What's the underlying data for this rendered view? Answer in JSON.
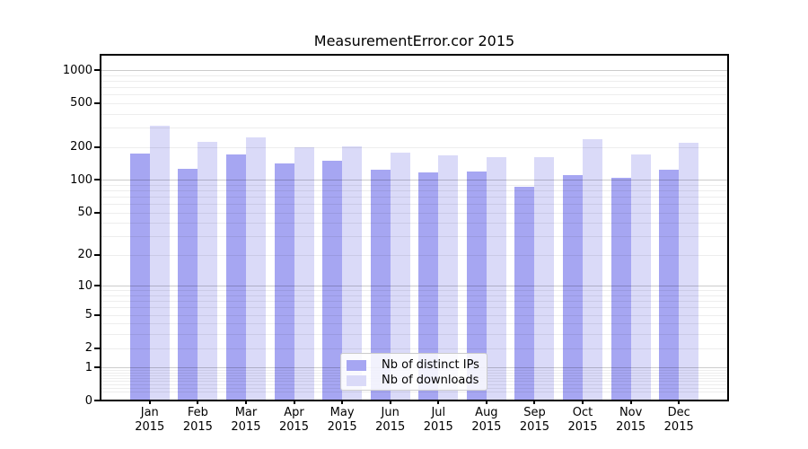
{
  "chart_data": {
    "type": "bar",
    "title": "MeasurementError.cor 2015",
    "year": "2015",
    "categories": [
      "Jan",
      "Feb",
      "Mar",
      "Apr",
      "May",
      "Jun",
      "Jul",
      "Aug",
      "Sep",
      "Oct",
      "Nov",
      "Dec"
    ],
    "series": [
      {
        "name": "Nb of distinct IPs",
        "color": "#a6a6f2",
        "values": [
          175,
          127,
          170,
          141,
          149,
          123,
          116,
          119,
          86,
          110,
          105,
          123
        ]
      },
      {
        "name": "Nb of downloads",
        "color": "#dadaf8",
        "values": [
          315,
          222,
          243,
          200,
          203,
          179,
          167,
          160,
          162,
          234,
          170,
          217
        ]
      }
    ],
    "yscale": "log10(1+y)",
    "yticks": [
      0,
      1,
      2,
      5,
      10,
      20,
      50,
      100,
      200,
      500,
      1000
    ],
    "ylim": [
      0,
      1315
    ],
    "grid": "horizontal minor + decade major",
    "legend_position": "lower center"
  }
}
